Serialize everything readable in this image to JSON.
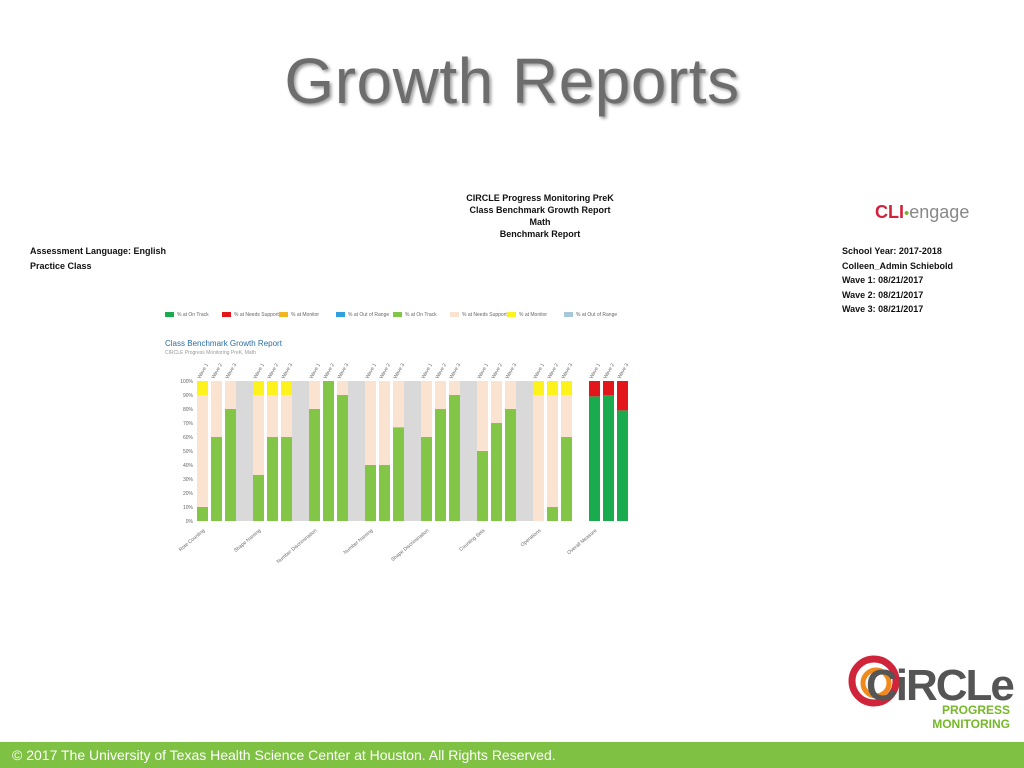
{
  "slide": {
    "title": "Growth Reports"
  },
  "report": {
    "header_lines": [
      "CIRCLE Progress Monitoring PreK",
      "Class Benchmark Growth Report",
      "Math",
      "Benchmark Report"
    ],
    "left_info": [
      "Assessment Language: English",
      "Practice Class"
    ],
    "right_info": [
      "School Year: 2017-2018",
      "Colleen_Admin Schiebold",
      "Wave 1: 08/21/2017",
      "Wave 2: 08/21/2017",
      "Wave 3: 08/21/2017"
    ],
    "brand": {
      "part1": "CLI",
      "part2": "engage"
    }
  },
  "legend": [
    {
      "label": "% at On Track",
      "color": "#1aab4f"
    },
    {
      "label": "% at Needs Support",
      "color": "#e3161b"
    },
    {
      "label": "% at Monitor",
      "color": "#f2b51c"
    },
    {
      "label": "% at Out of Range",
      "color": "#2fa0dc"
    },
    {
      "label": "% at On Track",
      "color": "#82c547"
    },
    {
      "label": "% at Needs Support",
      "color": "#fbe3d2"
    },
    {
      "label": "% at Monitor",
      "color": "#fdf21b"
    },
    {
      "label": "% at Out of Range",
      "color": "#a7c7da"
    }
  ],
  "chart_data": {
    "type": "bar",
    "stacked": true,
    "title": "Class Benchmark Growth Report",
    "subtitle": "CIRCLE Progress Monitoring PreK, Math",
    "ylim": [
      0,
      100
    ],
    "y_ticks": [
      "0%",
      "10%",
      "20%",
      "30%",
      "40%",
      "50%",
      "60%",
      "70%",
      "80%",
      "90%",
      "100%"
    ],
    "wave_labels": [
      "Wave 1",
      "Wave 2",
      "Wave 3"
    ],
    "band_color": "#d9d9d9",
    "colors": {
      "on_track": "#82c547",
      "needs_support": "#fbe3d2",
      "monitor": "#fdf21b",
      "overall_on_track": "#1aab4f",
      "overall_needs_support": "#e3161b"
    },
    "groups": [
      {
        "label": "Rote Counting",
        "bars": [
          {
            "wave": "Wave 1",
            "on_track": 10,
            "needs_support": 80,
            "monitor": 10
          },
          {
            "wave": "Wave 2",
            "on_track": 60,
            "needs_support": 40,
            "monitor": 0
          },
          {
            "wave": "Wave 3",
            "on_track": 80,
            "needs_support": 20,
            "monitor": 0
          }
        ]
      },
      {
        "label": "Shape Naming",
        "bars": [
          {
            "wave": "Wave 1",
            "on_track": 33,
            "needs_support": 57,
            "monitor": 10
          },
          {
            "wave": "Wave 2",
            "on_track": 60,
            "needs_support": 30,
            "monitor": 10
          },
          {
            "wave": "Wave 3",
            "on_track": 60,
            "needs_support": 30,
            "monitor": 10
          }
        ]
      },
      {
        "label": "Number Discrimination",
        "bars": [
          {
            "wave": "Wave 1",
            "on_track": 80,
            "needs_support": 20,
            "monitor": 0
          },
          {
            "wave": "Wave 2",
            "on_track": 100,
            "needs_support": 0,
            "monitor": 0
          },
          {
            "wave": "Wave 3",
            "on_track": 90,
            "needs_support": 10,
            "monitor": 0
          }
        ]
      },
      {
        "label": "Number Naming",
        "bars": [
          {
            "wave": "Wave 1",
            "on_track": 40,
            "needs_support": 60,
            "monitor": 0
          },
          {
            "wave": "Wave 2",
            "on_track": 40,
            "needs_support": 60,
            "monitor": 0
          },
          {
            "wave": "Wave 3",
            "on_track": 67,
            "needs_support": 33,
            "monitor": 0
          }
        ]
      },
      {
        "label": "Shape Discrimination",
        "bars": [
          {
            "wave": "Wave 1",
            "on_track": 60,
            "needs_support": 40,
            "monitor": 0
          },
          {
            "wave": "Wave 2",
            "on_track": 80,
            "needs_support": 20,
            "monitor": 0
          },
          {
            "wave": "Wave 3",
            "on_track": 90,
            "needs_support": 10,
            "monitor": 0
          }
        ]
      },
      {
        "label": "Counting Sets",
        "bars": [
          {
            "wave": "Wave 1",
            "on_track": 50,
            "needs_support": 50,
            "monitor": 0
          },
          {
            "wave": "Wave 2",
            "on_track": 70,
            "needs_support": 30,
            "monitor": 0
          },
          {
            "wave": "Wave 3",
            "on_track": 80,
            "needs_support": 20,
            "monitor": 0
          }
        ]
      },
      {
        "label": "Operations",
        "bars": [
          {
            "wave": "Wave 1",
            "on_track": 0,
            "needs_support": 90,
            "monitor": 10
          },
          {
            "wave": "Wave 2",
            "on_track": 10,
            "needs_support": 80,
            "monitor": 10
          },
          {
            "wave": "Wave 3",
            "on_track": 60,
            "needs_support": 30,
            "monitor": 10
          }
        ]
      },
      {
        "label": "Overall Measure",
        "overall": true,
        "bars": [
          {
            "wave": "Wave 1",
            "on_track": 89,
            "needs_support": 11,
            "monitor": 0
          },
          {
            "wave": "Wave 2",
            "on_track": 90,
            "needs_support": 10,
            "monitor": 0
          },
          {
            "wave": "Wave 3",
            "on_track": 79,
            "needs_support": 21,
            "monitor": 0
          }
        ]
      }
    ]
  },
  "logo": {
    "word": "CiRCLe",
    "line1": "PROGRESS",
    "line2": "MONITORING",
    "colors": {
      "red": "#d0243a",
      "orange": "#f08a1c",
      "green": "#76b82a",
      "gray": "#555555"
    }
  },
  "footer": {
    "text": "© 2017 The University of Texas Health Science Center at Houston. All Rights Reserved.",
    "color": "#7fc243"
  }
}
